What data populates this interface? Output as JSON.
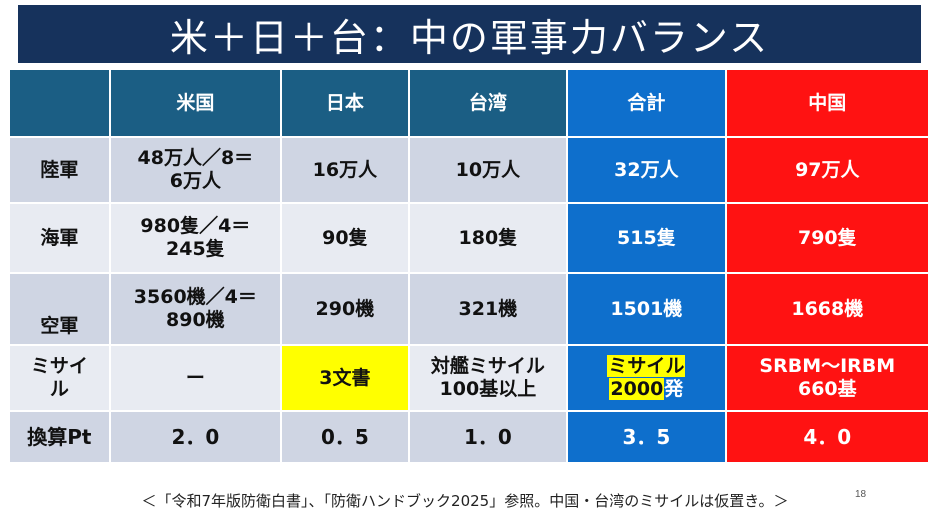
{
  "title": "米＋日＋台：中の軍事力バランス",
  "headers": [
    "",
    "米国",
    "日本",
    "台湾",
    "合計",
    "中国"
  ],
  "rows": [
    {
      "label": "陸軍",
      "us_line1": "48万人／8＝",
      "us_line2": "6万人",
      "japan": "16万人",
      "taiwan": "10万人",
      "total": "32万人",
      "china": "97万人"
    },
    {
      "label": "海軍",
      "us_line1": "980隻／4＝",
      "us_line2": "245隻",
      "japan": "90隻",
      "taiwan": "180隻",
      "total": "515隻",
      "china": "790隻"
    },
    {
      "label": "空軍",
      "us_line1": "3560機／4＝",
      "us_line2": "890機",
      "japan": "290機",
      "taiwan": "321機",
      "total": "1501機",
      "china": "1668機"
    },
    {
      "label_line1": "ミサイ",
      "label_line2": "ル",
      "us": "ー",
      "japan": "3文書",
      "taiwan_line1": "対艦ミサイル",
      "taiwan_line2": "100基以上",
      "total_line1": "ミサイル",
      "total_line2_num": "2000",
      "total_line2_unit": "発",
      "china_line1": "SRBM～IRBM",
      "china_line2": "660基"
    },
    {
      "label": "換算Pt",
      "us": "2．0",
      "japan": "0．5",
      "taiwan": "1．0",
      "total": "3．5",
      "china": "4．0"
    }
  ],
  "footnote": "＜「令和7年版防衛白書」、「防衛ハンドブック2025」参照。中国・台湾のミサイルは仮置き。＞",
  "page_number": "18",
  "colors": {
    "title_bg": "#16325c",
    "header_bg": "#1b5e84",
    "total_bg": "#0e6fcc",
    "china_bg": "#ff1212",
    "highlight": "#ffff00",
    "row_odd": "#cfd5e3",
    "row_even": "#e8ebf2"
  }
}
